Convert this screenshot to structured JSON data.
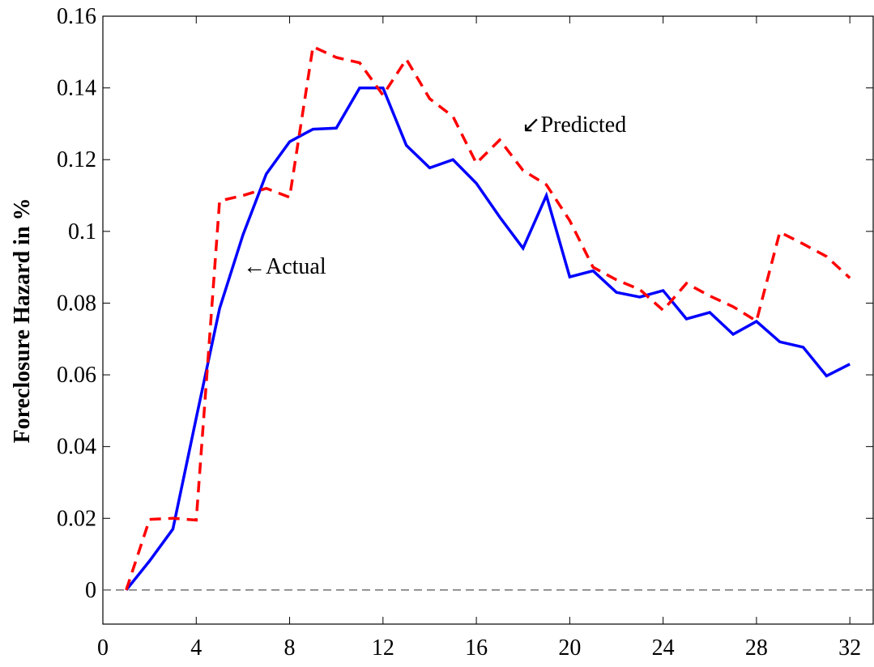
{
  "chart_data": {
    "type": "line",
    "ylabel": "Foreclosure Hazard in %",
    "x": [
      1,
      2,
      3,
      4,
      5,
      6,
      7,
      8,
      9,
      10,
      11,
      12,
      13,
      14,
      15,
      16,
      17,
      18,
      19,
      20,
      21,
      22,
      23,
      24,
      25,
      26,
      27,
      28,
      29,
      30,
      31,
      32
    ],
    "series": [
      {
        "name": "Actual",
        "color": "#0000ff",
        "dash": "solid",
        "values": [
          0.0,
          0.0081,
          0.017,
          0.048,
          0.0785,
          0.099,
          0.116,
          0.125,
          0.1285,
          0.1288,
          0.14,
          0.14,
          0.124,
          0.1177,
          0.12,
          0.1134,
          0.104,
          0.0953,
          0.11,
          0.0873,
          0.089,
          0.083,
          0.0817,
          0.0835,
          0.0756,
          0.0774,
          0.0713,
          0.0749,
          0.0692,
          0.0677,
          0.0597,
          0.063
        ]
      },
      {
        "name": "Predicted",
        "color": "#ff0000",
        "dash": "dashed",
        "values": [
          0.0,
          0.0197,
          0.02,
          0.0195,
          0.1085,
          0.11,
          0.112,
          0.1095,
          0.1515,
          0.1485,
          0.147,
          0.138,
          0.148,
          0.137,
          0.132,
          0.119,
          0.1255,
          0.117,
          0.113,
          0.103,
          0.09,
          0.0865,
          0.0838,
          0.078,
          0.0855,
          0.082,
          0.079,
          0.075,
          0.0998,
          0.0965,
          0.093,
          0.087
        ]
      }
    ],
    "annotations": [
      "←Actual",
      "↙Predicted"
    ],
    "hline": 0,
    "xlim": [
      0,
      33
    ],
    "xticks": [
      0,
      4,
      8,
      12,
      16,
      20,
      24,
      28,
      32
    ],
    "ylim": [
      -0.0095,
      0.16
    ],
    "yticks": [
      0,
      0.02,
      0.04,
      0.06,
      0.08,
      0.1,
      0.12,
      0.14,
      0.16
    ],
    "grid": false
  }
}
